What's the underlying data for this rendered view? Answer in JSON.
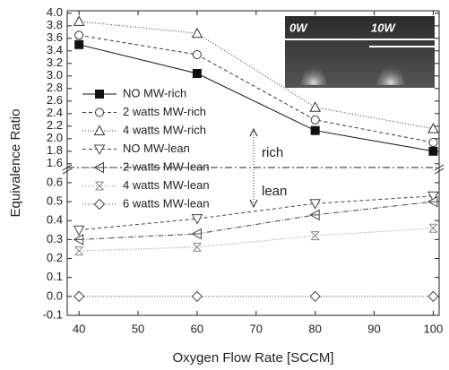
{
  "chart_data": [
    {
      "type": "line",
      "x": [
        40,
        60,
        80,
        100
      ],
      "xlim": [
        38,
        101
      ],
      "ylim": [
        1.54,
        4.04
      ],
      "yticks": [
        1.6,
        1.8,
        {
          "value": 2,
          "label": "2.0"
        },
        2.2,
        2.4,
        2.6,
        2.8,
        {
          "value": 3,
          "label": "3.0"
        },
        3.2,
        3.4,
        3.6,
        3.8,
        {
          "value": 4,
          "label": "4.0"
        }
      ],
      "annotations": [
        "rich",
        "lean"
      ],
      "inset_labels": [
        "0W",
        "10W"
      ],
      "series": [
        {
          "name": "NO MW-rich",
          "color": "#111111",
          "marker": "square-filled",
          "dash": "none",
          "values": [
            3.5,
            3.04,
            2.13,
            1.8
          ]
        },
        {
          "name": "2 watts MW-rich",
          "color": "#333333",
          "marker": "circle",
          "dash": "4 3",
          "values": [
            3.65,
            3.34,
            2.3,
            1.94
          ]
        },
        {
          "name": "4 watts MW-rich",
          "color": "#333333",
          "marker": "triangle-up",
          "dash": "1 2",
          "values": [
            3.87,
            3.68,
            2.5,
            2.16
          ]
        }
      ]
    },
    {
      "type": "line",
      "x": [
        40,
        60,
        80,
        100
      ],
      "xlim": [
        38,
        101
      ],
      "xticks": [
        40,
        50,
        60,
        70,
        80,
        90,
        100
      ],
      "ylim": [
        -0.1,
        0.68
      ],
      "yticks": [
        -0.1,
        {
          "value": 0,
          "label": "0.0"
        },
        0.1,
        0.2,
        0.3,
        0.4,
        0.5,
        0.6
      ],
      "xlabel": "Oxygen Flow Rate [SCCM]",
      "ylabel": "Equivalence Ratio",
      "series": [
        {
          "name": "NO MW-lean",
          "color": "#444444",
          "marker": "triangle-down",
          "dash": "4 3",
          "values": [
            0.35,
            0.41,
            0.49,
            0.53
          ]
        },
        {
          "name": "2 watts MW-lean",
          "color": "#444444",
          "marker": "triangle-left-cross",
          "dash": "6 2 1 2",
          "values": [
            0.3,
            0.33,
            0.43,
            0.5
          ]
        },
        {
          "name": "4 watts MW-lean",
          "color": "#888888",
          "marker": "x-box",
          "dash": "1 2",
          "values": [
            0.24,
            0.26,
            0.32,
            0.36
          ]
        },
        {
          "name": "6 watts MW-lean",
          "color": "#444444",
          "marker": "diamond",
          "dash": "1 2",
          "values": [
            0,
            0,
            0,
            0
          ]
        }
      ]
    }
  ]
}
